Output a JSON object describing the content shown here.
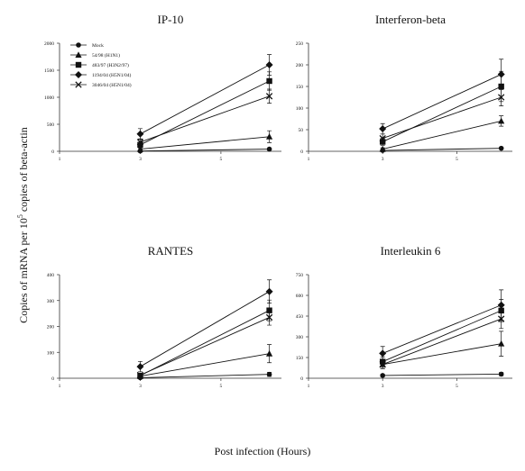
{
  "figure": {
    "ylabel_main": "Copies of mRNA per 10",
    "ylabel_sup": "5",
    "ylabel_rest": " copies of beta-actin",
    "xlabel": "Post infection (Hours)"
  },
  "colors": {
    "ink": "#111111",
    "axis": "#333333"
  },
  "chart_data": [
    {
      "type": "line",
      "title": "IP-10",
      "xlim": [
        1,
        6.5
      ],
      "xticks": [
        1,
        3,
        5
      ],
      "ylim": [
        0,
        2000
      ],
      "yticks": [
        0,
        500,
        1000,
        1500,
        2000
      ],
      "x": [
        3,
        6.2
      ],
      "legend": "top-left",
      "series": [
        {
          "name": "Mock",
          "marker": "circle",
          "values": [
            5,
            40
          ],
          "err": [
            5,
            8
          ]
        },
        {
          "name": "54/98 (H1N1)",
          "marker": "triangle",
          "values": [
            40,
            270
          ],
          "err": [
            15,
            110
          ]
        },
        {
          "name": "483/97 (H3N2/97)",
          "marker": "square",
          "values": [
            120,
            1300
          ],
          "err": [
            50,
            170
          ]
        },
        {
          "name": "1194/04 (H5N1/04)",
          "marker": "diamond",
          "values": [
            320,
            1600
          ],
          "err": [
            100,
            190
          ]
        },
        {
          "name": "3046/04 (H5N1/04)",
          "marker": "x",
          "values": [
            170,
            1020
          ],
          "err": [
            60,
            130
          ]
        }
      ]
    },
    {
      "type": "line",
      "title": "Interferon-beta",
      "xlim": [
        1,
        6.5
      ],
      "xticks": [
        1,
        3,
        5
      ],
      "ylim": [
        0,
        250
      ],
      "yticks": [
        0,
        50,
        100,
        150,
        200,
        250
      ],
      "x": [
        3,
        6.2
      ],
      "series": [
        {
          "name": "Mock",
          "marker": "circle",
          "values": [
            2,
            7
          ],
          "err": [
            1,
            1
          ]
        },
        {
          "name": "54/98 (H1N1)",
          "marker": "triangle",
          "values": [
            5,
            70
          ],
          "err": [
            3,
            12
          ]
        },
        {
          "name": "483/97 (H3N2/97)",
          "marker": "square",
          "values": [
            22,
            150
          ],
          "err": [
            8,
            35
          ]
        },
        {
          "name": "1194/04 (H5N1/04)",
          "marker": "diamond",
          "values": [
            52,
            178
          ],
          "err": [
            12,
            35
          ]
        },
        {
          "name": "3046/04 (H5N1/04)",
          "marker": "x",
          "values": [
            30,
            125
          ],
          "err": [
            10,
            20
          ]
        }
      ]
    },
    {
      "type": "line",
      "title": "RANTES",
      "xlim": [
        1,
        6.5
      ],
      "xticks": [
        1,
        3,
        5
      ],
      "ylim": [
        0,
        400
      ],
      "yticks": [
        0,
        100,
        200,
        300,
        400
      ],
      "x": [
        3,
        6.2
      ],
      "series": [
        {
          "name": "Mock",
          "marker": "circle",
          "values": [
            2,
            15
          ],
          "err": [
            1,
            8
          ]
        },
        {
          "name": "54/98 (H1N1)",
          "marker": "triangle",
          "values": [
            8,
            95
          ],
          "err": [
            4,
            35
          ]
        },
        {
          "name": "483/97 (H3N2/97)",
          "marker": "square",
          "values": [
            10,
            262
          ],
          "err": [
            5,
            40
          ]
        },
        {
          "name": "1194/04 (H5N1/04)",
          "marker": "diamond",
          "values": [
            45,
            335
          ],
          "err": [
            20,
            45
          ]
        },
        {
          "name": "3046/04 (H5N1/04)",
          "marker": "x",
          "values": [
            12,
            235
          ],
          "err": [
            6,
            30
          ]
        }
      ]
    },
    {
      "type": "line",
      "title": "Interleukin 6",
      "xlim": [
        1,
        6.5
      ],
      "xticks": [
        1,
        3,
        5
      ],
      "ylim": [
        0,
        750
      ],
      "yticks": [
        0,
        150,
        300,
        450,
        600,
        750
      ],
      "x": [
        3,
        6.2
      ],
      "series": [
        {
          "name": "Mock",
          "marker": "circle",
          "values": [
            20,
            30
          ],
          "err": [
            8,
            12
          ]
        },
        {
          "name": "54/98 (H1N1)",
          "marker": "triangle",
          "values": [
            100,
            250
          ],
          "err": [
            30,
            90
          ]
        },
        {
          "name": "483/97 (H3N2/97)",
          "marker": "square",
          "values": [
            120,
            490
          ],
          "err": [
            35,
            80
          ]
        },
        {
          "name": "1194/04 (H5N1/04)",
          "marker": "diamond",
          "values": [
            180,
            530
          ],
          "err": [
            50,
            110
          ]
        },
        {
          "name": "3046/04 (H5N1/04)",
          "marker": "x",
          "values": [
            100,
            430
          ],
          "err": [
            30,
            70
          ]
        }
      ]
    }
  ]
}
